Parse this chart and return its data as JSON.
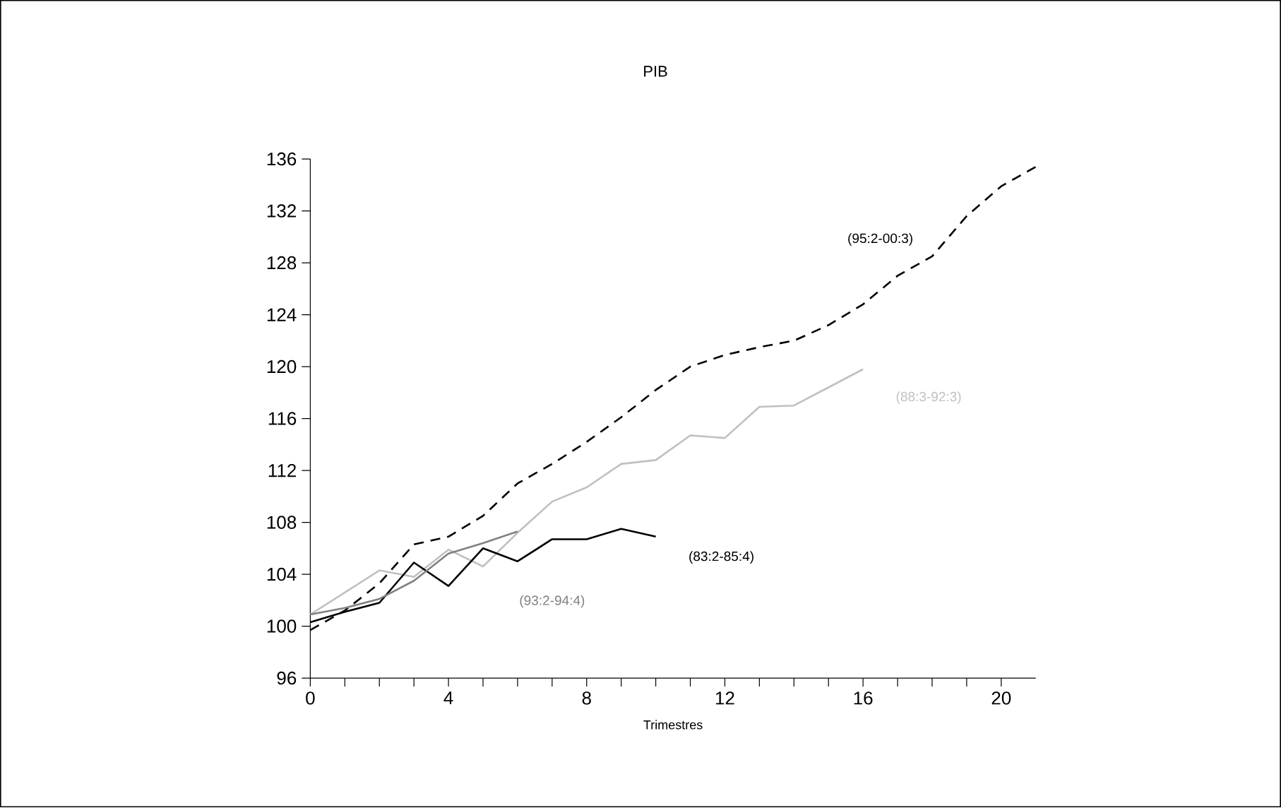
{
  "chart_data": {
    "type": "line",
    "title": "PIB",
    "xlabel": "Trimestres",
    "x": [
      0,
      1,
      2,
      3,
      4,
      5,
      6,
      7,
      8,
      9,
      10,
      11,
      12,
      13,
      14,
      15,
      16,
      17,
      18,
      19,
      20,
      21
    ],
    "series": [
      {
        "name": "(95:2-00:3)",
        "color": "#000000",
        "line_style": "dashed",
        "values": [
          99.7,
          101.2,
          103.3,
          106.3,
          106.9,
          108.5,
          111.0,
          112.5,
          114.2,
          116.1,
          118.2,
          120.0,
          120.9,
          121.5,
          122.0,
          123.2,
          124.8,
          127.0,
          128.5,
          131.6,
          133.9,
          135.4
        ]
      },
      {
        "name": "(88:3-92:3)",
        "color": "#c0c0c0",
        "values": [
          100.9,
          102.6,
          104.3,
          103.8,
          105.9,
          104.6,
          107.2,
          109.6,
          110.7,
          112.5,
          112.8,
          114.7,
          114.5,
          116.9,
          117.0,
          118.4,
          119.8,
          null,
          null,
          null,
          null,
          null
        ]
      },
      {
        "name": "(83:2-85:4)",
        "color": "#000000",
        "values": [
          100.3,
          101.1,
          101.8,
          104.9,
          103.1,
          106.0,
          105.0,
          106.7,
          106.7,
          107.5,
          106.9,
          null,
          null,
          null,
          null,
          null,
          null,
          null,
          null,
          null,
          null,
          null
        ]
      },
      {
        "name": "(93:2-94:4)",
        "color": "#808080",
        "values": [
          100.9,
          101.4,
          102.1,
          103.5,
          105.6,
          106.4,
          107.3,
          null,
          null,
          null,
          null,
          null,
          null,
          null,
          null,
          null,
          null,
          null,
          null,
          null,
          null,
          null
        ]
      }
    ],
    "xlim": [
      0,
      21
    ],
    "xticks": [
      0,
      4,
      8,
      12,
      16,
      20
    ],
    "ylim": [
      96,
      136
    ],
    "yticks": [
      96,
      100,
      104,
      108,
      112,
      116,
      120,
      124,
      128,
      132,
      136
    ],
    "grid": false,
    "legend": false,
    "marker": "none"
  }
}
